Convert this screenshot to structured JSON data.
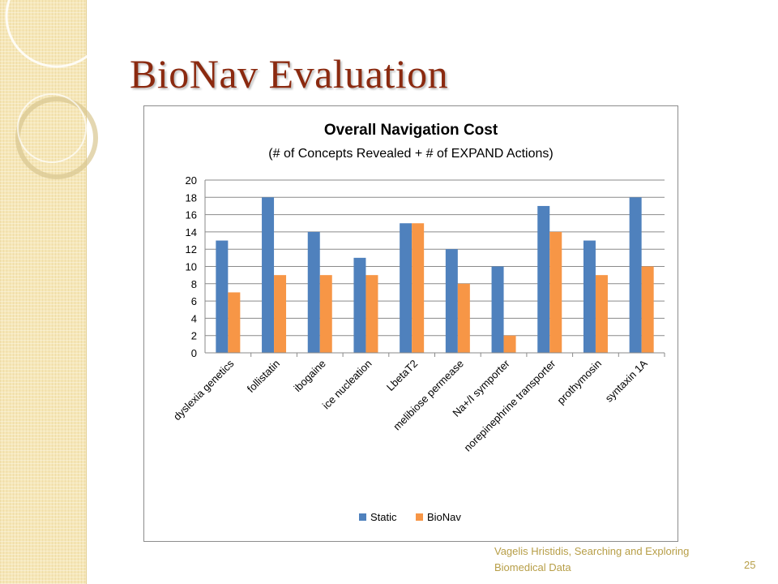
{
  "slide": {
    "title": "BioNav Evaluation",
    "footer": "Vagelis Hristidis, Searching and Exploring Biomedical Data",
    "page_number": "25"
  },
  "colors": {
    "title": "#8b2a10",
    "static": "#4f81bd",
    "bionav": "#f79646",
    "footer": "#b79e47",
    "band": "#f6e7b8"
  },
  "chart_data": {
    "type": "bar",
    "title": "Overall Navigation Cost",
    "subtitle": "(# of Concepts Revealed + # of EXPAND Actions)",
    "xlabel": "",
    "ylabel": "",
    "categories": [
      "dyslexia genetics",
      "follistatin",
      "ibogaine",
      "ice nucleation",
      "LbetaT2",
      "melibiose permease",
      "Na+/I symporter",
      "norepinephrine transporter",
      "prothymosin",
      "syntaxin 1A"
    ],
    "series": [
      {
        "name": "Static",
        "color": "#4f81bd",
        "values": [
          13,
          18,
          14,
          11,
          15,
          12,
          10,
          17,
          13,
          18
        ]
      },
      {
        "name": "BioNav",
        "color": "#f79646",
        "values": [
          7,
          9,
          9,
          9,
          15,
          8,
          2,
          14,
          9,
          10
        ]
      }
    ],
    "ylim": [
      0,
      20
    ],
    "yticks": [
      0,
      2,
      4,
      6,
      8,
      10,
      12,
      14,
      16,
      18,
      20
    ],
    "grid": true,
    "legend_position": "bottom"
  }
}
